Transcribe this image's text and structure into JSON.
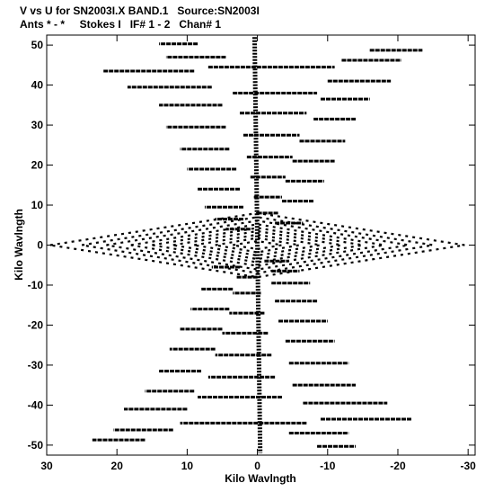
{
  "chart_data": {
    "type": "scatter",
    "title": "V vs U for SN2003I.X BAND.1   Source:SN2003I",
    "subtitle": "Ants * - *     Stokes I   IF# 1 - 2   Chan# 1",
    "xlabel": "Kilo Wavlngth",
    "ylabel": "Kilo Wavlngth",
    "xlim": [
      30,
      -31
    ],
    "ylim": [
      -52.5,
      52.5
    ],
    "x_ticks": [
      30,
      20,
      10,
      0,
      -10,
      -20,
      -30
    ],
    "y_ticks": [
      50,
      40,
      30,
      20,
      10,
      0,
      -10,
      -20,
      -30,
      -40,
      -50
    ],
    "grid": false,
    "series": [
      {
        "description_type": "uv-tracks",
        "horizontal_tracks": [
          {
            "v": 50.3,
            "u": [
              8.5,
              14.0
            ]
          },
          {
            "v": 48.7,
            "u": [
              -16.0,
              -23.5
            ]
          },
          {
            "v": 47.0,
            "u": [
              4.5,
              13.0
            ]
          },
          {
            "v": 46.2,
            "u": [
              -12.0,
              -20.5
            ]
          },
          {
            "v": 44.5,
            "u": [
              7.0,
              -11.0
            ]
          },
          {
            "v": 43.5,
            "u": [
              9.0,
              22.0
            ]
          },
          {
            "v": 41.0,
            "u": [
              -10.0,
              -19.0
            ]
          },
          {
            "v": 39.5,
            "u": [
              6.5,
              18.5
            ]
          },
          {
            "v": 38.0,
            "u": [
              3.5,
              -8.5
            ]
          },
          {
            "v": 36.5,
            "u": [
              -9.0,
              -16.0
            ]
          },
          {
            "v": 35.0,
            "u": [
              5.0,
              14.0
            ]
          },
          {
            "v": 33.0,
            "u": [
              2.5,
              -7.0
            ]
          },
          {
            "v": 31.5,
            "u": [
              -8.0,
              -14.0
            ]
          },
          {
            "v": 29.5,
            "u": [
              4.5,
              13.0
            ]
          },
          {
            "v": 27.5,
            "u": [
              2.0,
              -6.0
            ]
          },
          {
            "v": 26.0,
            "u": [
              -6.0,
              -12.5
            ]
          },
          {
            "v": 24.0,
            "u": [
              4.0,
              11.0
            ]
          },
          {
            "v": 22.0,
            "u": [
              1.5,
              -5.0
            ]
          },
          {
            "v": 21.0,
            "u": [
              -5.0,
              -11.0
            ]
          },
          {
            "v": 19.0,
            "u": [
              3.0,
              10.0
            ]
          },
          {
            "v": 17.0,
            "u": [
              1.0,
              -4.0
            ]
          },
          {
            "v": 16.0,
            "u": [
              -4.0,
              -9.5
            ]
          },
          {
            "v": 14.0,
            "u": [
              2.5,
              8.5
            ]
          },
          {
            "v": 12.0,
            "u": [
              0.5,
              -3.5
            ]
          },
          {
            "v": 11.0,
            "u": [
              -3.5,
              -8.0
            ]
          },
          {
            "v": 9.5,
            "u": [
              2.0,
              7.5
            ]
          },
          {
            "v": 8.0,
            "u": [
              0.0,
              -3.0
            ]
          },
          {
            "v": 6.5,
            "u": [
              2.0,
              6.0
            ]
          },
          {
            "v": 5.5,
            "u": [
              -2.5,
              -6.5
            ]
          },
          {
            "v": 4.0,
            "u": [
              1.0,
              4.5
            ]
          },
          {
            "v": -4.0,
            "u": [
              -1.0,
              -4.5
            ]
          },
          {
            "v": -5.5,
            "u": [
              2.5,
              6.5
            ]
          },
          {
            "v": -6.5,
            "u": [
              -2.0,
              -6.0
            ]
          },
          {
            "v": -8.0,
            "u": [
              0.0,
              3.0
            ]
          },
          {
            "v": -9.5,
            "u": [
              -2.0,
              -7.5
            ]
          },
          {
            "v": -11.0,
            "u": [
              3.5,
              8.0
            ]
          },
          {
            "v": -12.0,
            "u": [
              -0.5,
              3.5
            ]
          },
          {
            "v": -14.0,
            "u": [
              -2.5,
              -8.5
            ]
          },
          {
            "v": -16.0,
            "u": [
              4.0,
              9.5
            ]
          },
          {
            "v": -17.0,
            "u": [
              -1.0,
              4.0
            ]
          },
          {
            "v": -19.0,
            "u": [
              -3.0,
              -10.0
            ]
          },
          {
            "v": -21.0,
            "u": [
              5.0,
              11.0
            ]
          },
          {
            "v": -22.0,
            "u": [
              -1.5,
              5.0
            ]
          },
          {
            "v": -24.0,
            "u": [
              -4.0,
              -11.0
            ]
          },
          {
            "v": -26.0,
            "u": [
              6.0,
              12.5
            ]
          },
          {
            "v": -27.5,
            "u": [
              -2.0,
              6.0
            ]
          },
          {
            "v": -29.5,
            "u": [
              -4.5,
              -13.0
            ]
          },
          {
            "v": -31.5,
            "u": [
              8.0,
              14.0
            ]
          },
          {
            "v": -33.0,
            "u": [
              -2.5,
              7.0
            ]
          },
          {
            "v": -35.0,
            "u": [
              -5.0,
              -14.0
            ]
          },
          {
            "v": -36.5,
            "u": [
              9.0,
              16.0
            ]
          },
          {
            "v": -38.0,
            "u": [
              -3.5,
              8.5
            ]
          },
          {
            "v": -39.5,
            "u": [
              -6.5,
              -18.5
            ]
          },
          {
            "v": -41.0,
            "u": [
              10.0,
              19.0
            ]
          },
          {
            "v": -43.5,
            "u": [
              -9.0,
              -22.0
            ]
          },
          {
            "v": -44.5,
            "u": [
              -7.0,
              11.0
            ]
          },
          {
            "v": -46.2,
            "u": [
              12.0,
              20.5
            ]
          },
          {
            "v": -47.0,
            "u": [
              -4.5,
              -13.0
            ]
          },
          {
            "v": -48.7,
            "u": [
              16.0,
              23.5
            ]
          },
          {
            "v": -50.3,
            "u": [
              -8.5,
              -14.0
            ]
          }
        ],
        "central_spine": [
          [
            0.4,
            52.0
          ],
          [
            -0.4,
            -52.0
          ]
        ],
        "diamond_rings_u_halfwidth": [
          3.5,
          6.0,
          9.0,
          12.0,
          15.0,
          18.0,
          21.5,
          25.0,
          29.5
        ],
        "diamond_rings_v_halfheight": [
          1.0,
          1.8,
          2.6,
          3.5,
          4.3,
          5.2,
          6.1,
          7.0,
          8.0
        ]
      }
    ]
  }
}
